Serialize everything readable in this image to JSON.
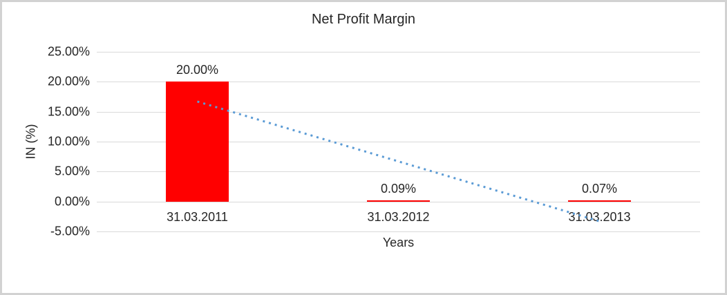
{
  "chart_data": {
    "type": "bar",
    "title": "Net Profit Margin",
    "xlabel": "Years",
    "ylabel": "IN (%)",
    "categories": [
      "31.03.2011",
      "31.03.2012",
      "31.03.2013"
    ],
    "values": [
      20.0,
      0.09,
      0.07
    ],
    "data_labels": [
      "20.00%",
      "0.09%",
      "0.07%"
    ],
    "ylim": [
      -5,
      25
    ],
    "ytick_values": [
      25,
      20,
      15,
      10,
      5,
      0,
      -5
    ],
    "ytick_labels": [
      "25.00%",
      "20.00%",
      "15.00%",
      "10.00%",
      "5.00%",
      "0.00%",
      "-5.00%"
    ],
    "grid": true,
    "legend": false,
    "bar_color": "#ff0000",
    "gridline_color": "#d9d9d9",
    "text_color": "#262626",
    "trendline": {
      "type": "linear",
      "style": "dotted",
      "color": "#5b9bd5",
      "start_pct": 16.7,
      "end_pct": -3.3
    }
  }
}
